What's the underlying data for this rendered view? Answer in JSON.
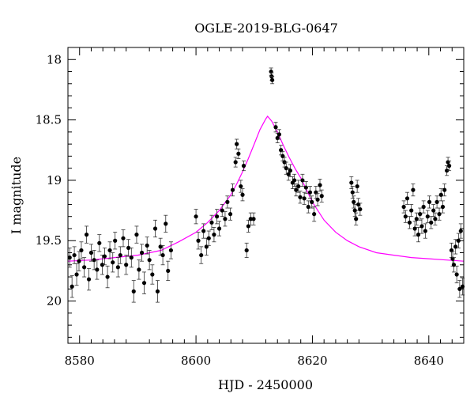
{
  "chart_data": {
    "type": "scatter",
    "title": "OGLE-2019-BLG-0647",
    "xlabel": "HJD - 2450000",
    "ylabel": "I magnitude",
    "xlim": [
      8578,
      8646
    ],
    "ylim": [
      20.35,
      17.9
    ],
    "y_inverted": true,
    "grid": false,
    "x_ticks": [
      8580,
      8600,
      8620,
      8640
    ],
    "x_tick_labels": [
      "8580",
      "8600",
      "8620",
      "8640"
    ],
    "y_ticks": [
      18,
      18.5,
      19,
      19.5,
      20
    ],
    "y_tick_labels": [
      "18",
      "18.5",
      "19",
      "19.5",
      "20"
    ],
    "model_color": "#ff00ff",
    "point_color": "#000000",
    "model": {
      "name": "",
      "t0": 8612.3,
      "peak_mag": 18.47,
      "baseline_mag": 19.69,
      "tE": 6.5,
      "x": [
        8578,
        8582,
        8586,
        8590,
        8594,
        8597,
        8600,
        8602,
        8604,
        8606,
        8607,
        8608,
        8609,
        8610,
        8611,
        8612,
        8612.3,
        8613,
        8614,
        8615,
        8616,
        8617,
        8618,
        8619,
        8620,
        8622,
        8624,
        8626,
        8628,
        8631,
        8634,
        8637,
        8640,
        8643,
        8646
      ],
      "y": [
        19.67,
        19.66,
        19.64,
        19.62,
        19.58,
        19.51,
        19.43,
        19.35,
        19.25,
        19.12,
        19.03,
        18.93,
        18.82,
        18.7,
        18.58,
        18.49,
        18.47,
        18.51,
        18.6,
        18.71,
        18.81,
        18.9,
        18.98,
        19.08,
        19.18,
        19.33,
        19.43,
        19.5,
        19.55,
        19.6,
        19.62,
        19.64,
        19.65,
        19.66,
        19.67
      ]
    },
    "series": [
      {
        "name": "",
        "points": [
          {
            "x": 8578.3,
            "y": 19.64,
            "err": 0.08
          },
          {
            "x": 8578.7,
            "y": 19.88,
            "err": 0.09
          },
          {
            "x": 8579.1,
            "y": 19.62,
            "err": 0.07
          },
          {
            "x": 8579.5,
            "y": 19.78,
            "err": 0.09
          },
          {
            "x": 8579.9,
            "y": 19.67,
            "err": 0.08
          },
          {
            "x": 8580.3,
            "y": 19.58,
            "err": 0.07
          },
          {
            "x": 8580.8,
            "y": 19.72,
            "err": 0.08
          },
          {
            "x": 8581.2,
            "y": 19.45,
            "err": 0.07
          },
          {
            "x": 8581.6,
            "y": 19.82,
            "err": 0.09
          },
          {
            "x": 8582.0,
            "y": 19.6,
            "err": 0.07
          },
          {
            "x": 8582.5,
            "y": 19.66,
            "err": 0.08
          },
          {
            "x": 8583.0,
            "y": 19.74,
            "err": 0.08
          },
          {
            "x": 8583.4,
            "y": 19.52,
            "err": 0.07
          },
          {
            "x": 8583.9,
            "y": 19.7,
            "err": 0.08
          },
          {
            "x": 8584.3,
            "y": 19.63,
            "err": 0.07
          },
          {
            "x": 8584.8,
            "y": 19.8,
            "err": 0.09
          },
          {
            "x": 8585.2,
            "y": 19.58,
            "err": 0.07
          },
          {
            "x": 8585.7,
            "y": 19.68,
            "err": 0.08
          },
          {
            "x": 8586.1,
            "y": 19.5,
            "err": 0.07
          },
          {
            "x": 8586.6,
            "y": 19.72,
            "err": 0.08
          },
          {
            "x": 8587.0,
            "y": 19.62,
            "err": 0.07
          },
          {
            "x": 8587.5,
            "y": 19.48,
            "err": 0.07
          },
          {
            "x": 8588.0,
            "y": 19.7,
            "err": 0.08
          },
          {
            "x": 8588.4,
            "y": 19.56,
            "err": 0.07
          },
          {
            "x": 8588.9,
            "y": 19.64,
            "err": 0.08
          },
          {
            "x": 8589.3,
            "y": 19.92,
            "err": 0.09
          },
          {
            "x": 8589.8,
            "y": 19.45,
            "err": 0.07
          },
          {
            "x": 8590.2,
            "y": 19.74,
            "err": 0.08
          },
          {
            "x": 8590.7,
            "y": 19.6,
            "err": 0.07
          },
          {
            "x": 8591.1,
            "y": 19.85,
            "err": 0.09
          },
          {
            "x": 8591.6,
            "y": 19.54,
            "err": 0.07
          },
          {
            "x": 8592.0,
            "y": 19.66,
            "err": 0.08
          },
          {
            "x": 8592.5,
            "y": 19.78,
            "err": 0.08
          },
          {
            "x": 8593.0,
            "y": 19.4,
            "err": 0.07
          },
          {
            "x": 8593.4,
            "y": 19.92,
            "err": 0.09
          },
          {
            "x": 8593.9,
            "y": 19.55,
            "err": 0.07
          },
          {
            "x": 8594.3,
            "y": 19.62,
            "err": 0.08
          },
          {
            "x": 8594.8,
            "y": 19.36,
            "err": 0.07
          },
          {
            "x": 8595.2,
            "y": 19.75,
            "err": 0.08
          },
          {
            "x": 8595.7,
            "y": 19.58,
            "err": 0.07
          },
          {
            "x": 8600.0,
            "y": 19.3,
            "err": 0.06
          },
          {
            "x": 8600.4,
            "y": 19.5,
            "err": 0.07
          },
          {
            "x": 8600.9,
            "y": 19.62,
            "err": 0.07
          },
          {
            "x": 8601.3,
            "y": 19.42,
            "err": 0.06
          },
          {
            "x": 8601.8,
            "y": 19.55,
            "err": 0.07
          },
          {
            "x": 8602.2,
            "y": 19.48,
            "err": 0.06
          },
          {
            "x": 8602.7,
            "y": 19.35,
            "err": 0.06
          },
          {
            "x": 8603.1,
            "y": 19.45,
            "err": 0.06
          },
          {
            "x": 8603.6,
            "y": 19.3,
            "err": 0.06
          },
          {
            "x": 8604.0,
            "y": 19.4,
            "err": 0.06
          },
          {
            "x": 8604.5,
            "y": 19.25,
            "err": 0.05
          },
          {
            "x": 8605.0,
            "y": 19.32,
            "err": 0.06
          },
          {
            "x": 8605.4,
            "y": 19.18,
            "err": 0.05
          },
          {
            "x": 8605.9,
            "y": 19.28,
            "err": 0.05
          },
          {
            "x": 8606.3,
            "y": 19.08,
            "err": 0.05
          },
          {
            "x": 8606.8,
            "y": 18.85,
            "err": 0.04
          },
          {
            "x": 8607.0,
            "y": 18.7,
            "err": 0.04
          },
          {
            "x": 8607.3,
            "y": 18.78,
            "err": 0.04
          },
          {
            "x": 8607.7,
            "y": 19.05,
            "err": 0.05
          },
          {
            "x": 8608.0,
            "y": 19.12,
            "err": 0.05
          },
          {
            "x": 8608.2,
            "y": 18.88,
            "err": 0.04
          },
          {
            "x": 8608.7,
            "y": 19.58,
            "err": 0.06
          },
          {
            "x": 8609.0,
            "y": 19.38,
            "err": 0.05
          },
          {
            "x": 8609.4,
            "y": 19.32,
            "err": 0.05
          },
          {
            "x": 8609.9,
            "y": 19.32,
            "err": 0.05
          },
          {
            "x": 8612.9,
            "y": 18.1,
            "err": 0.03
          },
          {
            "x": 8613.0,
            "y": 18.14,
            "err": 0.03
          },
          {
            "x": 8613.1,
            "y": 18.17,
            "err": 0.03
          },
          {
            "x": 8613.7,
            "y": 18.56,
            "err": 0.04
          },
          {
            "x": 8614.0,
            "y": 18.65,
            "err": 0.04
          },
          {
            "x": 8614.3,
            "y": 18.62,
            "err": 0.04
          },
          {
            "x": 8614.6,
            "y": 18.75,
            "err": 0.04
          },
          {
            "x": 8614.9,
            "y": 18.8,
            "err": 0.04
          },
          {
            "x": 8615.2,
            "y": 18.85,
            "err": 0.04
          },
          {
            "x": 8615.5,
            "y": 18.9,
            "err": 0.05
          },
          {
            "x": 8615.9,
            "y": 18.95,
            "err": 0.05
          },
          {
            "x": 8616.2,
            "y": 18.92,
            "err": 0.05
          },
          {
            "x": 8616.6,
            "y": 19.02,
            "err": 0.05
          },
          {
            "x": 8616.9,
            "y": 19.0,
            "err": 0.05
          },
          {
            "x": 8617.2,
            "y": 19.08,
            "err": 0.05
          },
          {
            "x": 8617.6,
            "y": 19.05,
            "err": 0.05
          },
          {
            "x": 8617.9,
            "y": 19.14,
            "err": 0.05
          },
          {
            "x": 8618.3,
            "y": 19.0,
            "err": 0.05
          },
          {
            "x": 8618.6,
            "y": 19.15,
            "err": 0.05
          },
          {
            "x": 8618.9,
            "y": 19.06,
            "err": 0.05
          },
          {
            "x": 8619.3,
            "y": 19.22,
            "err": 0.05
          },
          {
            "x": 8619.6,
            "y": 19.1,
            "err": 0.05
          },
          {
            "x": 8619.9,
            "y": 19.18,
            "err": 0.05
          },
          {
            "x": 8620.3,
            "y": 19.28,
            "err": 0.06
          },
          {
            "x": 8620.6,
            "y": 19.1,
            "err": 0.05
          },
          {
            "x": 8620.9,
            "y": 19.16,
            "err": 0.05
          },
          {
            "x": 8621.3,
            "y": 19.04,
            "err": 0.05
          },
          {
            "x": 8621.6,
            "y": 19.13,
            "err": 0.05
          },
          {
            "x": 8626.7,
            "y": 19.02,
            "err": 0.05
          },
          {
            "x": 8626.9,
            "y": 19.1,
            "err": 0.05
          },
          {
            "x": 8627.1,
            "y": 19.18,
            "err": 0.05
          },
          {
            "x": 8627.3,
            "y": 19.25,
            "err": 0.05
          },
          {
            "x": 8627.5,
            "y": 19.32,
            "err": 0.05
          },
          {
            "x": 8627.7,
            "y": 19.05,
            "err": 0.05
          },
          {
            "x": 8627.9,
            "y": 19.2,
            "err": 0.05
          },
          {
            "x": 8628.2,
            "y": 19.24,
            "err": 0.05
          },
          {
            "x": 8635.7,
            "y": 19.22,
            "err": 0.05
          },
          {
            "x": 8636.0,
            "y": 19.3,
            "err": 0.05
          },
          {
            "x": 8636.3,
            "y": 19.15,
            "err": 0.05
          },
          {
            "x": 8636.7,
            "y": 19.35,
            "err": 0.05
          },
          {
            "x": 8637.0,
            "y": 19.25,
            "err": 0.05
          },
          {
            "x": 8637.3,
            "y": 19.08,
            "err": 0.05
          },
          {
            "x": 8637.6,
            "y": 19.4,
            "err": 0.06
          },
          {
            "x": 8637.9,
            "y": 19.32,
            "err": 0.05
          },
          {
            "x": 8638.2,
            "y": 19.45,
            "err": 0.06
          },
          {
            "x": 8638.5,
            "y": 19.28,
            "err": 0.05
          },
          {
            "x": 8638.8,
            "y": 19.38,
            "err": 0.06
          },
          {
            "x": 8639.1,
            "y": 19.22,
            "err": 0.05
          },
          {
            "x": 8639.4,
            "y": 19.42,
            "err": 0.06
          },
          {
            "x": 8639.8,
            "y": 19.3,
            "err": 0.05
          },
          {
            "x": 8640.1,
            "y": 19.18,
            "err": 0.05
          },
          {
            "x": 8640.4,
            "y": 19.35,
            "err": 0.05
          },
          {
            "x": 8640.8,
            "y": 19.25,
            "err": 0.05
          },
          {
            "x": 8641.1,
            "y": 19.32,
            "err": 0.05
          },
          {
            "x": 8641.4,
            "y": 19.18,
            "err": 0.05
          },
          {
            "x": 8641.8,
            "y": 19.28,
            "err": 0.05
          },
          {
            "x": 8642.1,
            "y": 19.12,
            "err": 0.05
          },
          {
            "x": 8642.4,
            "y": 19.22,
            "err": 0.05
          },
          {
            "x": 8642.7,
            "y": 19.08,
            "err": 0.05
          },
          {
            "x": 8643.1,
            "y": 18.92,
            "err": 0.04
          },
          {
            "x": 8643.3,
            "y": 18.85,
            "err": 0.04
          },
          {
            "x": 8643.5,
            "y": 18.88,
            "err": 0.04
          },
          {
            "x": 8643.9,
            "y": 19.58,
            "err": 0.06
          },
          {
            "x": 8644.1,
            "y": 19.65,
            "err": 0.06
          },
          {
            "x": 8644.3,
            "y": 19.7,
            "err": 0.06
          },
          {
            "x": 8644.6,
            "y": 19.55,
            "err": 0.06
          },
          {
            "x": 8644.8,
            "y": 19.78,
            "err": 0.07
          },
          {
            "x": 8645.1,
            "y": 19.5,
            "err": 0.06
          },
          {
            "x": 8645.3,
            "y": 19.9,
            "err": 0.07
          },
          {
            "x": 8645.5,
            "y": 19.42,
            "err": 0.06
          },
          {
            "x": 8645.8,
            "y": 19.88,
            "err": 0.07
          }
        ]
      }
    ]
  }
}
